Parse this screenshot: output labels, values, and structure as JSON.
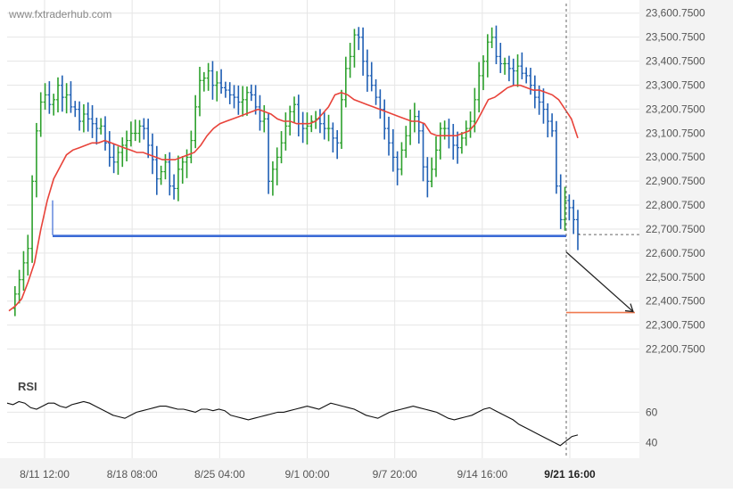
{
  "watermark": "www.fxtraderhub.com",
  "rsi_label": "RSI",
  "colors": {
    "up": "#2ca02c",
    "down": "#1f5fb4",
    "ma": "#e8433a",
    "level": "#3b6bd6",
    "target": "#f07a50",
    "arrow": "#222222",
    "rsi": "#111111",
    "grid": "#e6e6e6",
    "axis_text": "#555555",
    "axis_bg": "#f3f3f3"
  },
  "chart_data": {
    "type": "candlestick",
    "price_axis": {
      "ylim": [
        22150.75,
        23625.75
      ],
      "ticks": [
        "23,600.7500",
        "23,500.7500",
        "23,400.7500",
        "23,300.7500",
        "23,200.7500",
        "23,100.7500",
        "23,000.7500",
        "22,900.7500",
        "22,800.7500",
        "22,700.7500",
        "22,600.7500",
        "22,500.7500",
        "22,400.7500",
        "22,300.7500",
        "22,200.7500"
      ]
    },
    "x_axis": {
      "labels": [
        "8/11 12:00",
        "8/18 08:00",
        "8/25 04:00",
        "9/1 00:00",
        "9/7 20:00",
        "9/14 16:00",
        "9/21 16:00"
      ],
      "bold_label_index": 6
    },
    "support_level": 22672,
    "target_level": 22353,
    "current_price": 22678,
    "rsi_axis": {
      "ylim": [
        32,
        82
      ],
      "ticks": [
        60,
        40
      ]
    },
    "series_points": [
      22370,
      22430,
      22490,
      22560,
      22620,
      22900,
      23110,
      23230,
      23260,
      23220,
      23240,
      23300,
      23250,
      23260,
      23210,
      23200,
      23150,
      23180,
      23160,
      23140,
      23120,
      23130,
      23060,
      23000,
      22980,
      23020,
      23050,
      23070,
      23100,
      23100,
      23130,
      23120,
      23050,
      22990,
      22910,
      22940,
      22980,
      22880,
      22870,
      22950,
      22980,
      23000,
      23070,
      23210,
      23320,
      23330,
      23360,
      23300,
      23310,
      23290,
      23280,
      23260,
      23250,
      23230,
      23240,
      23270,
      23260,
      23210,
      23150,
      23160,
      22900,
      22950,
      23000,
      23060,
      23130,
      23190,
      23220,
      23140,
      23120,
      23130,
      23150,
      23160,
      23140,
      23120,
      23120,
      23080,
      23060,
      23240,
      23370,
      23420,
      23510,
      23500,
      23400,
      23340,
      23300,
      23250,
      23200,
      23120,
      23060,
      23000,
      22950,
      23030,
      23090,
      23150,
      23170,
      23110,
      22960,
      22900,
      22950,
      23030,
      23120,
      23120,
      23090,
      23050,
      23040,
      23080,
      23120,
      23150,
      23240,
      23340,
      23400,
      23480,
      23500,
      23420,
      23390,
      23390,
      23370,
      23360,
      23380,
      23350,
      23340,
      23300,
      23250,
      23230,
      23200,
      23150,
      23110,
      22880,
      22740,
      22820,
      22790,
      22740,
      22680
    ],
    "ma_points": [
      22360,
      22380,
      22410,
      22480,
      22560,
      22700,
      22820,
      22910,
      22960,
      23010,
      23030,
      23040,
      23050,
      23060,
      23060,
      23070,
      23060,
      23050,
      23040,
      23030,
      23020,
      23020,
      23010,
      23000,
      22990,
      22990,
      22990,
      23000,
      23010,
      23020,
      23050,
      23090,
      23120,
      23140,
      23150,
      23160,
      23170,
      23180,
      23190,
      23200,
      23190,
      23180,
      23160,
      23150,
      23150,
      23140,
      23140,
      23140,
      23150,
      23180,
      23210,
      23260,
      23270,
      23260,
      23240,
      23230,
      23220,
      23210,
      23200,
      23190,
      23180,
      23170,
      23160,
      23150,
      23150,
      23140,
      23100,
      23090,
      23090,
      23090,
      23090,
      23100,
      23110,
      23140,
      23190,
      23240,
      23250,
      23270,
      23290,
      23300,
      23300,
      23290,
      23280,
      23280,
      23270,
      23260,
      23240,
      23200,
      23160,
      23080
    ],
    "rsi_points": [
      66,
      65,
      67,
      66,
      63,
      62,
      64,
      66,
      66,
      64,
      63,
      65,
      66,
      67,
      66,
      64,
      62,
      60,
      58,
      57,
      56,
      58,
      60,
      61,
      62,
      63,
      64,
      64,
      63,
      62,
      62,
      61,
      60,
      62,
      62,
      61,
      62,
      61,
      58,
      57,
      56,
      55,
      56,
      57,
      58,
      59,
      60,
      60,
      61,
      62,
      63,
      64,
      63,
      62,
      64,
      66,
      65,
      64,
      63,
      62,
      60,
      58,
      57,
      56,
      58,
      60,
      61,
      62,
      63,
      64,
      63,
      62,
      61,
      60,
      58,
      56,
      55,
      56,
      57,
      58,
      60,
      62,
      63,
      61,
      59,
      57,
      55,
      52,
      50,
      48,
      46,
      44,
      42,
      40,
      38,
      41,
      44,
      45
    ]
  }
}
